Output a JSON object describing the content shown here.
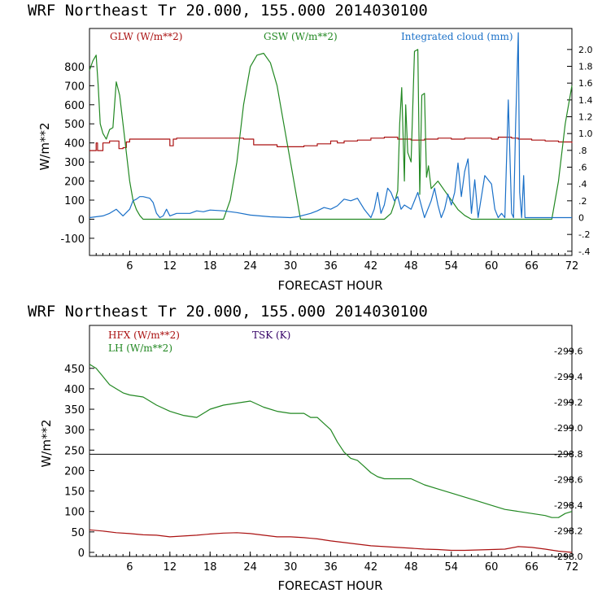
{
  "chart_data": [
    {
      "type": "line",
      "title": "WRF  Northeast Tr  20.000, 155.000  2014030100",
      "xlabel": "FORECAST HOUR",
      "ylabel": "W/m**2",
      "xlim": [
        0,
        72
      ],
      "xticks": [
        6,
        12,
        18,
        24,
        30,
        36,
        42,
        48,
        54,
        60,
        66,
        72
      ],
      "ylim": [
        -190,
        1000
      ],
      "yticks": [
        -100,
        0,
        100,
        200,
        300,
        400,
        500,
        600,
        700,
        800
      ],
      "y2lim": [
        -0.45,
        2.25
      ],
      "y2ticks": [
        -0.4,
        -0.2,
        0,
        0.2,
        0.4,
        0.6,
        0.8,
        1.0,
        1.2,
        1.4,
        1.6,
        1.8,
        2.0
      ],
      "y2ticklabels": [
        "-.4",
        "-.2",
        "0",
        ".2",
        ".4",
        ".6",
        ".8",
        "1.0",
        "1.2",
        "1.4",
        "1.6",
        "1.8",
        "2.0"
      ],
      "grid": false,
      "series": [
        {
          "name": "GLW (W/m**2)",
          "color": "#aa1111",
          "axis": "left",
          "step": true,
          "x": [
            0,
            1,
            1.2,
            2,
            3,
            4,
            4.4,
            5,
            5.5,
            6,
            8,
            11.5,
            12,
            12.5,
            13,
            18,
            23,
            24.5,
            28,
            32,
            34,
            36,
            37,
            38,
            40,
            42,
            44,
            46,
            48,
            50,
            52,
            54,
            56,
            58,
            60,
            61,
            63,
            64,
            66,
            68,
            70,
            72
          ],
          "y": [
            360,
            400,
            360,
            400,
            410,
            410,
            370,
            375,
            405,
            420,
            420,
            420,
            385,
            420,
            425,
            425,
            420,
            390,
            380,
            385,
            395,
            410,
            400,
            410,
            415,
            425,
            430,
            420,
            415,
            420,
            425,
            420,
            425,
            425,
            420,
            430,
            425,
            420,
            415,
            410,
            405,
            400
          ]
        },
        {
          "name": "GSW (W/m**2)",
          "color": "#228822",
          "axis": "left",
          "x": [
            0,
            0.5,
            1,
            1.3,
            1.6,
            2,
            2.5,
            3,
            3.5,
            4,
            4.5,
            5,
            5.5,
            6,
            6.5,
            7,
            7.5,
            8,
            9,
            12,
            16,
            20,
            21,
            22,
            23,
            24,
            25,
            26,
            27,
            28,
            29,
            30,
            31,
            31.5,
            35,
            40,
            44,
            45,
            45.5,
            46,
            46.3,
            46.6,
            47,
            47.2,
            47.5,
            48,
            48.5,
            49,
            49.3,
            49.6,
            50,
            50.3,
            50.6,
            51,
            52,
            53,
            54,
            55,
            56,
            57,
            60,
            65,
            69,
            70,
            71,
            72
          ],
          "y": [
            780,
            830,
            860,
            700,
            500,
            450,
            420,
            470,
            480,
            720,
            650,
            500,
            350,
            200,
            100,
            50,
            20,
            0,
            0,
            0,
            0,
            0,
            100,
            300,
            600,
            800,
            860,
            870,
            820,
            700,
            500,
            300,
            100,
            0,
            0,
            0,
            0,
            30,
            80,
            150,
            500,
            690,
            200,
            600,
            350,
            300,
            880,
            890,
            130,
            650,
            660,
            220,
            280,
            160,
            200,
            150,
            100,
            50,
            20,
            0,
            0,
            0,
            0,
            200,
            500,
            700
          ]
        },
        {
          "name": "Integrated cloud (mm)",
          "color": "#1a70c8",
          "axis": "right",
          "x": [
            0,
            2,
            3,
            4,
            5,
            6,
            6.5,
            7,
            7.5,
            8,
            8.5,
            9,
            9.5,
            10,
            10.5,
            11,
            11.5,
            12,
            13,
            15,
            16,
            17,
            18,
            20,
            22,
            24,
            27,
            30,
            31,
            32,
            33,
            34,
            35,
            36,
            37,
            38,
            39,
            40,
            41,
            42,
            42.5,
            43,
            43.5,
            44,
            44.5,
            45,
            45.5,
            46,
            46.5,
            47,
            48,
            49,
            50,
            50.5,
            51,
            51.5,
            52,
            52.5,
            53,
            53.5,
            54,
            54.5,
            55,
            55.5,
            56,
            56.5,
            57,
            57.5,
            58,
            59,
            60,
            60.5,
            61,
            61.5,
            62,
            62.5,
            63,
            63.3,
            63.6,
            64,
            64.2,
            64.5,
            64.8,
            65,
            65.5,
            66,
            66.5,
            67,
            68,
            72
          ],
          "y": [
            0,
            0.02,
            0.05,
            0.1,
            0.02,
            0.1,
            0.2,
            0.22,
            0.25,
            0.25,
            0.24,
            0.23,
            0.18,
            0.05,
            0.0,
            0.02,
            0.1,
            0.02,
            0.05,
            0.05,
            0.08,
            0.07,
            0.09,
            0.08,
            0.06,
            0.03,
            0.01,
            0.0,
            0.01,
            0.03,
            0.05,
            0.08,
            0.12,
            0.1,
            0.14,
            0.22,
            0.2,
            0.23,
            0.1,
            0.0,
            0.1,
            0.3,
            0.05,
            0.15,
            0.35,
            0.3,
            0.2,
            0.25,
            0.1,
            0.15,
            0.1,
            0.3,
            0.0,
            0.1,
            0.2,
            0.35,
            0.15,
            0.0,
            0.1,
            0.28,
            0.15,
            0.3,
            0.65,
            0.25,
            0.55,
            0.7,
            0.05,
            0.45,
            0.0,
            0.5,
            0.4,
            0.1,
            0.0,
            0.05,
            0.0,
            1.4,
            0.05,
            0.0,
            1.1,
            2.2,
            0.3,
            0.0,
            0.5,
            0.0,
            0.0,
            0.0,
            0.0,
            0.0,
            0.0,
            0.0
          ]
        }
      ]
    },
    {
      "type": "line",
      "title": "WRF  Northeast Tr  20.000, 155.000  2014030100",
      "xlabel": "FORECAST HOUR",
      "ylabel": "W/m**2",
      "xlim": [
        0,
        72
      ],
      "xticks": [
        6,
        12,
        18,
        24,
        30,
        36,
        42,
        48,
        54,
        60,
        66,
        72
      ],
      "ylim": [
        -10,
        555
      ],
      "yticks": [
        0,
        50,
        100,
        150,
        200,
        250,
        300,
        350,
        400,
        450
      ],
      "y2lim": [
        298.0,
        299.8
      ],
      "y2ticks": [
        298.0,
        298.2,
        298.4,
        298.6,
        298.8,
        299.0,
        299.2,
        299.4,
        299.6
      ],
      "y2ticklabels": [
        "298.0",
        "298.2",
        "298.4",
        "298.6",
        "298.8",
        "299.0",
        "299.2",
        "299.4",
        "299.6"
      ],
      "grid": false,
      "series": [
        {
          "name": "HFX (W/m**2)",
          "color": "#aa1111",
          "axis": "left",
          "x": [
            0,
            2,
            4,
            6,
            8,
            10,
            12,
            14,
            16,
            18,
            20,
            22,
            24,
            26,
            28,
            30,
            32,
            34,
            36,
            38,
            40,
            42,
            44,
            46,
            48,
            50,
            52,
            54,
            56,
            58,
            60,
            62,
            64,
            66,
            68,
            70,
            72
          ],
          "y": [
            55,
            52,
            48,
            46,
            43,
            42,
            38,
            40,
            42,
            45,
            47,
            48,
            46,
            42,
            38,
            38,
            36,
            33,
            28,
            24,
            20,
            16,
            14,
            12,
            10,
            8,
            7,
            5,
            5,
            6,
            7,
            8,
            14,
            12,
            8,
            3,
            0
          ]
        },
        {
          "name": "LH (W/m**2)",
          "color": "#228822",
          "axis": "left",
          "x": [
            0,
            1,
            2,
            3,
            4,
            5,
            6,
            8,
            10,
            12,
            14,
            16,
            18,
            20,
            22,
            24,
            26,
            28,
            30,
            32,
            33,
            34,
            36,
            37,
            38,
            39,
            40,
            41,
            42,
            43,
            44,
            46,
            48,
            50,
            52,
            54,
            56,
            58,
            60,
            62,
            64,
            66,
            68,
            69,
            70,
            71,
            72
          ],
          "y": [
            460,
            450,
            430,
            410,
            400,
            390,
            385,
            380,
            360,
            345,
            335,
            330,
            350,
            360,
            365,
            370,
            355,
            345,
            340,
            340,
            330,
            330,
            300,
            270,
            245,
            230,
            225,
            210,
            195,
            185,
            180,
            180,
            180,
            165,
            155,
            145,
            135,
            125,
            115,
            105,
            100,
            95,
            90,
            85,
            85,
            95,
            100
          ]
        },
        {
          "name": "TSK (K)",
          "color": "#330066",
          "axis": "right",
          "x": [
            0,
            72
          ],
          "y": [
            null,
            null
          ]
        }
      ],
      "hline": {
        "value": 240,
        "color": "#000000"
      }
    }
  ]
}
